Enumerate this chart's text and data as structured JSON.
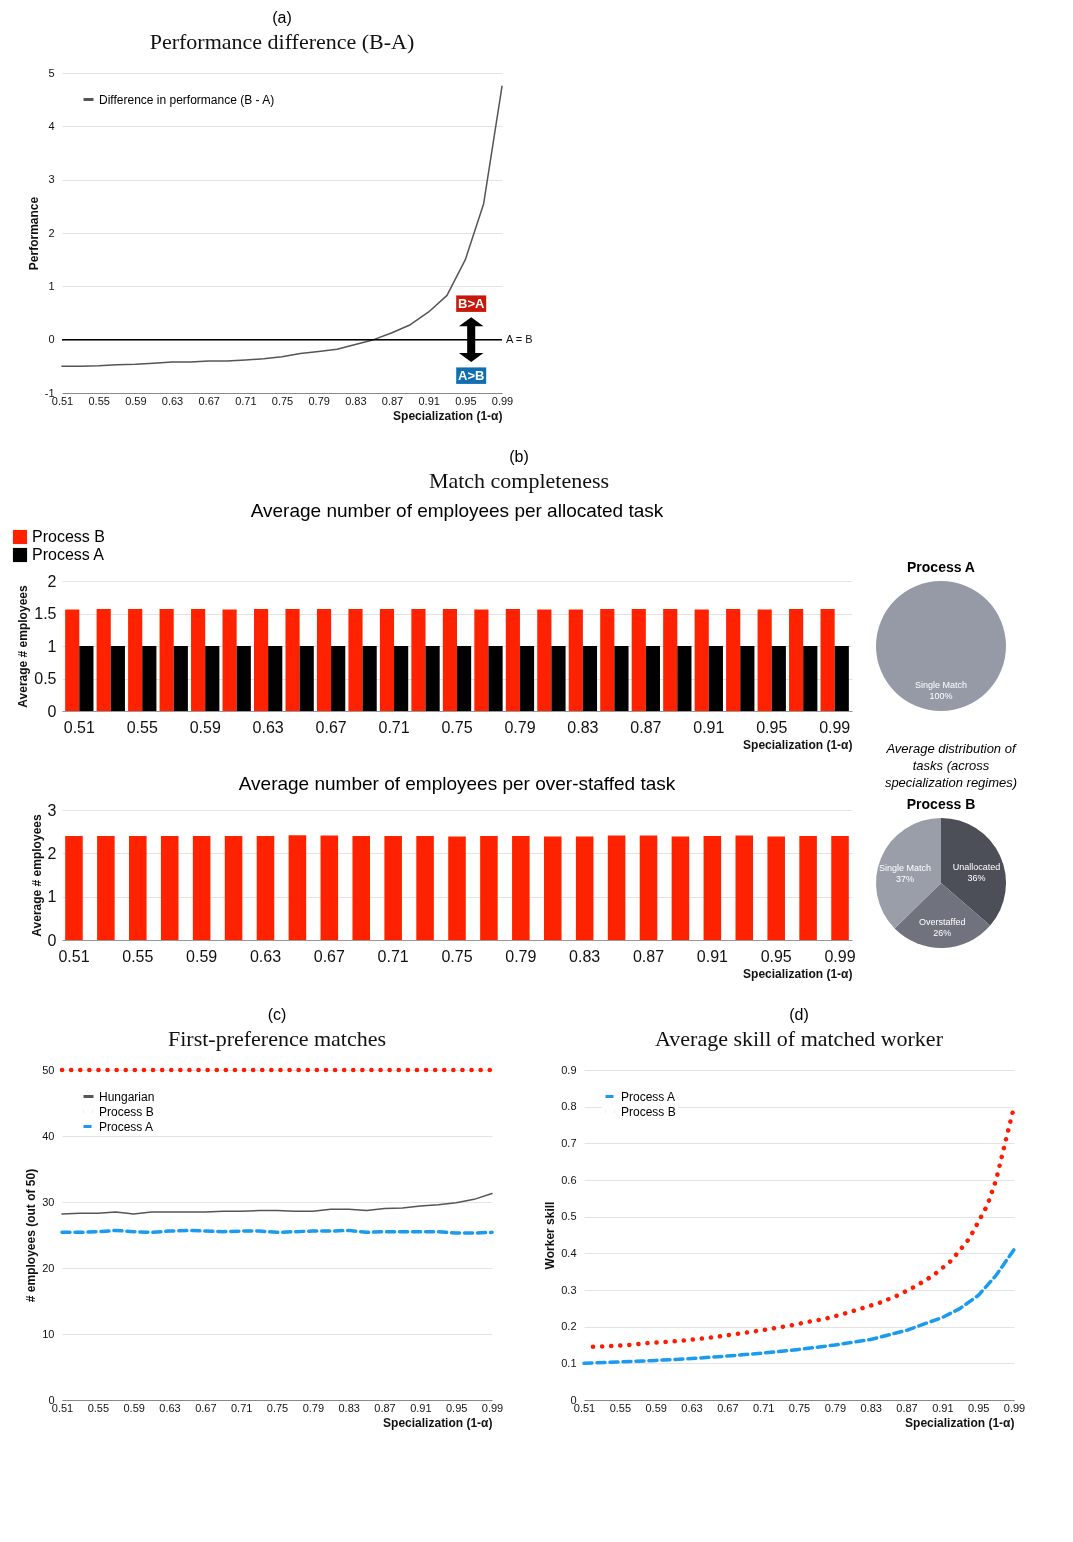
{
  "chart_data": [
    {
      "type": "line",
      "title": "(a)",
      "subtitle": "Performance difference (B-A)",
      "xlabel": "Specialization (1-α)",
      "ylabel": "Performance",
      "x": [
        0.51,
        0.53,
        0.55,
        0.57,
        0.59,
        0.61,
        0.63,
        0.65,
        0.67,
        0.69,
        0.71,
        0.73,
        0.75,
        0.77,
        0.79,
        0.81,
        0.83,
        0.85,
        0.87,
        0.89,
        0.91,
        0.93,
        0.95,
        0.97,
        0.99
      ],
      "series": [
        {
          "name": "Difference in performance (B - A)",
          "color": "#555555",
          "values": [
            -0.5,
            -0.5,
            -0.49,
            -0.47,
            -0.46,
            -0.44,
            -0.42,
            -0.42,
            -0.4,
            -0.4,
            -0.38,
            -0.36,
            -0.32,
            -0.26,
            -0.22,
            -0.18,
            -0.09,
            0.0,
            0.13,
            0.28,
            0.52,
            0.83,
            1.5,
            2.55,
            4.75
          ]
        }
      ],
      "xlim": [
        0.51,
        0.99
      ],
      "xticks": [
        0.51,
        0.55,
        0.59,
        0.63,
        0.67,
        0.71,
        0.75,
        0.79,
        0.83,
        0.87,
        0.91,
        0.95,
        0.99
      ],
      "ylim": [
        -1,
        5
      ],
      "yticks": [
        -1,
        0,
        1,
        2,
        3,
        4,
        5
      ],
      "grid": "y",
      "legend": "top left",
      "line_style": "solid",
      "ref_lines": [
        {
          "axis": "y",
          "value": 0,
          "label": "A = B",
          "color": "#000000"
        }
      ],
      "annotations": [
        "B>A",
        "A>B"
      ]
    },
    {
      "type": "bar",
      "title": "Average number of employees per allocated task",
      "xlabel": "Specialization (1-α)",
      "ylabel": "Average # employees",
      "categories": [
        "0.51",
        null,
        "0.55",
        null,
        "0.59",
        null,
        "0.63",
        null,
        "0.67",
        null,
        "0.71",
        null,
        "0.75",
        null,
        "0.79",
        null,
        "0.83",
        null,
        "0.87",
        null,
        "0.91",
        null,
        "0.95",
        null,
        "0.99"
      ],
      "series": [
        {
          "name": "Process B",
          "color": "#ff2200",
          "values": [
            1.56,
            1.57,
            1.57,
            1.57,
            1.57,
            1.56,
            1.57,
            1.57,
            1.57,
            1.57,
            1.57,
            1.57,
            1.57,
            1.56,
            1.57,
            1.56,
            1.56,
            1.57,
            1.57,
            1.57,
            1.56,
            1.57,
            1.56,
            1.57,
            1.57
          ]
        },
        {
          "name": "Process A",
          "color": "#000000",
          "values": [
            1,
            1,
            1,
            1,
            1,
            1,
            1,
            1,
            1,
            1,
            1,
            1,
            1,
            1,
            1,
            1,
            1,
            1,
            1,
            1,
            1,
            1,
            1,
            1,
            1
          ]
        }
      ],
      "ylim": [
        0,
        2
      ],
      "yticks": [
        0,
        0.5,
        1,
        1.5,
        2
      ],
      "grid": "y",
      "legend": "top left",
      "annotations": [
        "(b)",
        "Match completeness"
      ]
    },
    {
      "type": "bar",
      "title": "Average number of employees per over-staffed task",
      "xlabel": "Specialization (1-α)",
      "ylabel": "Average # employees",
      "categories": [
        "0.51",
        null,
        "0.55",
        null,
        "0.59",
        null,
        "0.63",
        null,
        "0.67",
        null,
        "0.71",
        null,
        "0.75",
        null,
        "0.79",
        null,
        "0.83",
        null,
        "0.87",
        null,
        "0.91",
        null,
        "0.95",
        null,
        "0.99"
      ],
      "series": [
        {
          "color": "#ff2200",
          "values": [
            2.4,
            2.4,
            2.4,
            2.4,
            2.4,
            2.4,
            2.4,
            2.42,
            2.41,
            2.4,
            2.4,
            2.4,
            2.39,
            2.4,
            2.4,
            2.39,
            2.39,
            2.41,
            2.41,
            2.39,
            2.4,
            2.41,
            2.39,
            2.4,
            2.4
          ]
        }
      ],
      "ylim": [
        0,
        3
      ],
      "yticks": [
        0,
        1,
        2,
        3
      ],
      "grid": "y"
    },
    {
      "type": "pie",
      "title": "Process A",
      "categories": [
        "Single Match"
      ],
      "values": [
        100
      ],
      "colors": [
        "#959aa6"
      ],
      "value_labels": [
        "100%"
      ],
      "annotations": [
        "Average distribution of tasks (across specialization regimes)"
      ]
    },
    {
      "type": "pie",
      "title": "Process B",
      "categories": [
        "Unallocated",
        "Overstaffed",
        "Single Match"
      ],
      "values": [
        36,
        26,
        37
      ],
      "colors": [
        "#4d4f58",
        "#70737d",
        "#9a9ea8"
      ],
      "value_labels": [
        "36%",
        "26%",
        "37%"
      ]
    },
    {
      "type": "line",
      "title": "(c)",
      "subtitle": "First-preference matches",
      "xlabel": "Specialization (1-α)",
      "ylabel": "# employees (out of 50)",
      "x": [
        0.51,
        0.53,
        0.55,
        0.57,
        0.59,
        0.61,
        0.63,
        0.65,
        0.67,
        0.69,
        0.71,
        0.73,
        0.75,
        0.77,
        0.79,
        0.81,
        0.83,
        0.85,
        0.87,
        0.89,
        0.91,
        0.93,
        0.95,
        0.97,
        0.99
      ],
      "series": [
        {
          "name": "Hungarian",
          "color": "#555555",
          "line_style": "solid",
          "values": [
            28.2,
            28.3,
            28.3,
            28.5,
            28.2,
            28.5,
            28.5,
            28.5,
            28.5,
            28.6,
            28.6,
            28.7,
            28.7,
            28.6,
            28.6,
            28.9,
            28.9,
            28.7,
            29.0,
            29.1,
            29.4,
            29.6,
            29.9,
            30.4,
            31.3
          ]
        },
        {
          "name": "Process B",
          "color": "#ff1a00",
          "line_style": "dotted",
          "values": [
            50,
            50,
            50,
            50,
            50,
            50,
            50,
            50,
            50,
            50,
            50,
            50,
            50,
            50,
            50,
            50,
            50,
            50,
            50,
            50,
            50,
            50,
            50,
            50,
            50
          ]
        },
        {
          "name": "Process A",
          "color": "#1a9bf0",
          "line_style": "dashed",
          "values": [
            25.4,
            25.4,
            25.5,
            25.7,
            25.5,
            25.4,
            25.6,
            25.7,
            25.6,
            25.5,
            25.6,
            25.6,
            25.4,
            25.5,
            25.6,
            25.6,
            25.7,
            25.4,
            25.5,
            25.5,
            25.5,
            25.5,
            25.3,
            25.3,
            25.4
          ]
        }
      ],
      "xlim": [
        0.51,
        0.99
      ],
      "xticks": [
        0.51,
        0.55,
        0.59,
        0.63,
        0.67,
        0.71,
        0.75,
        0.79,
        0.83,
        0.87,
        0.91,
        0.95,
        0.99
      ],
      "ylim": [
        0,
        50
      ],
      "yticks": [
        0,
        10,
        20,
        30,
        40,
        50
      ],
      "grid": "y",
      "legend": "top left"
    },
    {
      "type": "line",
      "title": "(d)",
      "subtitle": "Average skill of matched worker",
      "xlabel": "Specialization (1-α)",
      "ylabel": "Worker skill",
      "series": [
        {
          "name": "Process A",
          "color": "#1a9bf0",
          "line_style": "dashed",
          "x": [
            0.51,
            0.55,
            0.59,
            0.63,
            0.67,
            0.71,
            0.75,
            0.79,
            0.83,
            0.87,
            0.91,
            0.93,
            0.95,
            0.97,
            0.99
          ],
          "values": [
            0.1,
            0.104,
            0.108,
            0.113,
            0.12,
            0.128,
            0.138,
            0.15,
            0.165,
            0.19,
            0.225,
            0.25,
            0.285,
            0.34,
            0.41
          ]
        },
        {
          "name": "Process B",
          "color": "#ff1a00",
          "line_style": "dotted",
          "x": [
            0.52,
            0.54,
            0.56,
            0.58,
            0.6,
            0.62,
            0.64,
            0.66,
            0.68,
            0.7,
            0.72,
            0.74,
            0.76,
            0.78,
            0.8,
            0.82,
            0.84,
            0.86,
            0.88,
            0.9,
            0.92,
            0.94,
            0.96,
            0.97,
            0.98,
            0.99
          ],
          "values": [
            0.145,
            0.147,
            0.15,
            0.155,
            0.158,
            0.162,
            0.167,
            0.173,
            0.18,
            0.187,
            0.195,
            0.203,
            0.213,
            0.222,
            0.235,
            0.25,
            0.265,
            0.285,
            0.31,
            0.34,
            0.38,
            0.44,
            0.53,
            0.6,
            0.7,
            0.8
          ]
        }
      ],
      "xlim": [
        0.51,
        0.99
      ],
      "xticks": [
        0.51,
        0.55,
        0.59,
        0.63,
        0.67,
        0.71,
        0.75,
        0.79,
        0.83,
        0.87,
        0.91,
        0.95,
        0.99
      ],
      "ylim": [
        0,
        0.9
      ],
      "yticks": [
        0,
        0.1,
        0.2,
        0.3,
        0.4,
        0.5,
        0.6,
        0.7,
        0.8,
        0.9
      ],
      "grid": "y",
      "legend": "top left"
    }
  ]
}
